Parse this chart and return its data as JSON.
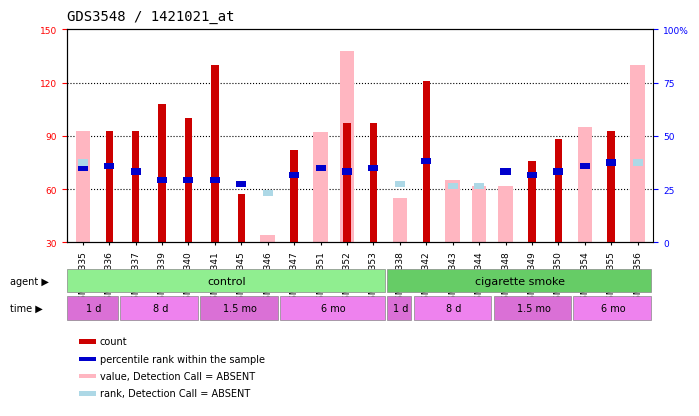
{
  "title": "GDS3548 / 1421021_at",
  "samples": [
    "GSM218335",
    "GSM218336",
    "GSM218337",
    "GSM218339",
    "GSM218340",
    "GSM218341",
    "GSM218345",
    "GSM218346",
    "GSM218347",
    "GSM218351",
    "GSM218352",
    "GSM218353",
    "GSM218338",
    "GSM218342",
    "GSM218343",
    "GSM218344",
    "GSM218348",
    "GSM218349",
    "GSM218350",
    "GSM218354",
    "GSM218355",
    "GSM218356"
  ],
  "red_bars": [
    0,
    93,
    93,
    108,
    100,
    130,
    57,
    0,
    82,
    0,
    97,
    97,
    0,
    121,
    0,
    0,
    0,
    76,
    88,
    0,
    93,
    0
  ],
  "pink_bars": [
    93,
    0,
    0,
    0,
    0,
    0,
    0,
    34,
    0,
    92,
    138,
    0,
    55,
    0,
    65,
    62,
    62,
    0,
    0,
    95,
    0,
    130
  ],
  "blue_squares": [
    72,
    73,
    70,
    65,
    65,
    65,
    63,
    0,
    68,
    72,
    70,
    72,
    0,
    76,
    0,
    0,
    70,
    68,
    70,
    73,
    75,
    75
  ],
  "light_blue_sq": [
    75,
    0,
    0,
    0,
    0,
    0,
    0,
    58,
    0,
    0,
    0,
    0,
    63,
    0,
    62,
    62,
    0,
    0,
    0,
    0,
    0,
    75
  ],
  "ylim_left": [
    30,
    150
  ],
  "ylim_right": [
    0,
    100
  ],
  "yticks_left": [
    30,
    60,
    90,
    120,
    150
  ],
  "yticks_right": [
    0,
    25,
    50,
    75,
    100
  ],
  "ytick_labels_right": [
    "0",
    "25",
    "50",
    "75",
    "100%"
  ],
  "grid_lines": [
    60,
    90,
    120
  ],
  "ctrl_color": "#90ee90",
  "smoke_color": "#66cc66",
  "time_color1": "#da70d6",
  "time_color2": "#ee82ee",
  "legend_colors": [
    "#cc0000",
    "#0000cc",
    "#ffb6c1",
    "#add8e6"
  ],
  "legend_labels": [
    "count",
    "percentile rank within the sample",
    "value, Detection Call = ABSENT",
    "rank, Detection Call = ABSENT"
  ],
  "title_fontsize": 10,
  "tick_fontsize": 6.5,
  "annot_fontsize": 7.5
}
